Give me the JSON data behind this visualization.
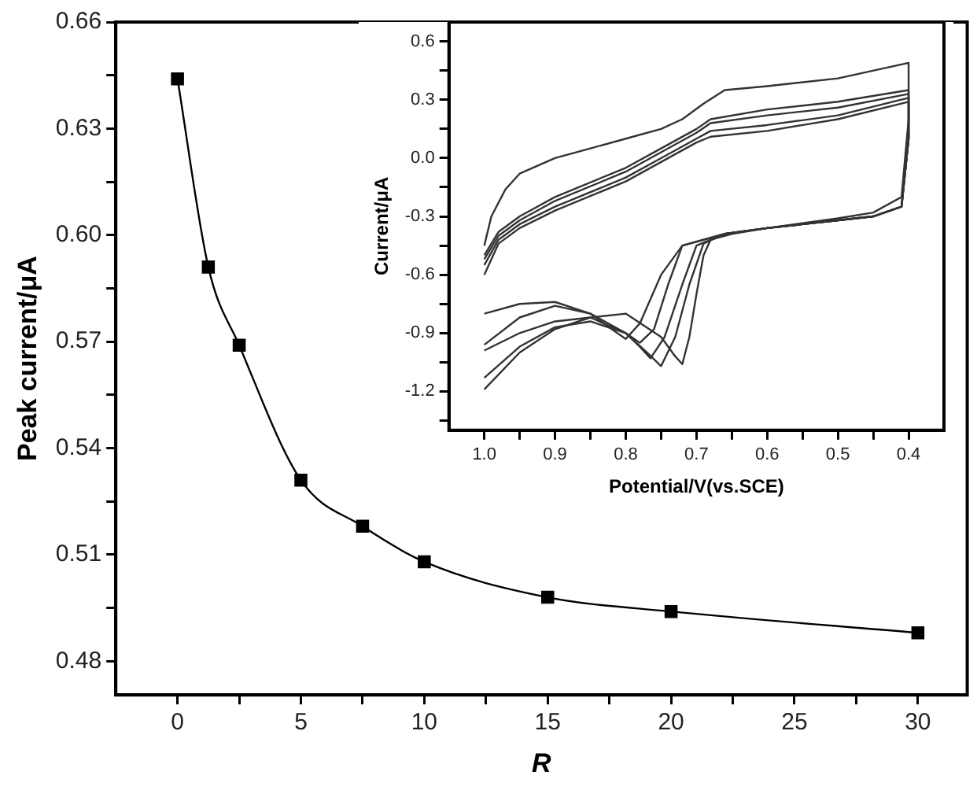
{
  "chart_data": [
    {
      "type": "line",
      "xlabel": "R",
      "ylabel": "Peak current/μA",
      "x": [
        0,
        1.25,
        2.5,
        5,
        7.5,
        10,
        15,
        20,
        30
      ],
      "series": [
        {
          "color": "#000000",
          "values": [
            0.644,
            0.591,
            0.569,
            0.531,
            0.518,
            0.508,
            0.498,
            0.494,
            0.488
          ]
        }
      ],
      "marker": "square",
      "xlim": [
        -2.5,
        32
      ],
      "ylim": [
        0.4705,
        0.66
      ],
      "xticks": [
        0,
        {
          "value": 2.5,
          "label": null
        },
        5,
        {
          "value": 7.5,
          "label": null
        },
        10,
        {
          "value": 12.5,
          "label": null
        },
        15,
        {
          "value": 17.5,
          "label": null
        },
        20,
        {
          "value": 22.5,
          "label": null
        },
        25,
        {
          "value": 27.5,
          "label": null
        },
        30
      ],
      "yticks": [
        0.48,
        {
          "value": 0.495,
          "label": null
        },
        0.51,
        {
          "value": 0.525,
          "label": null
        },
        0.54,
        {
          "value": 0.555,
          "label": null
        },
        0.57,
        {
          "value": 0.585,
          "label": null
        },
        {
          "value": 0.6,
          "label": "0.60"
        },
        {
          "value": 0.615,
          "label": null
        },
        0.63,
        {
          "value": 0.645,
          "label": null
        },
        0.66
      ],
      "grid": false,
      "legend": false
    },
    {
      "type": "line",
      "xlabel": "Potential/V(vs.SCE)",
      "ylabel": "Current/μA",
      "marker": "none",
      "grid": false,
      "legend": false,
      "xlim": [
        1.05,
        0.35
      ],
      "ylim": [
        -1.4,
        0.7
      ],
      "xticks": [
        {
          "value": 1.0,
          "label": "1.0"
        },
        {
          "value": 0.95,
          "label": null
        },
        {
          "value": 0.9,
          "label": "0.9"
        },
        {
          "value": 0.85,
          "label": null
        },
        {
          "value": 0.8,
          "label": "0.8"
        },
        {
          "value": 0.75,
          "label": null
        },
        {
          "value": 0.7,
          "label": "0.7"
        },
        {
          "value": 0.65,
          "label": null
        },
        {
          "value": 0.6,
          "label": "0.6"
        },
        {
          "value": 0.55,
          "label": null
        },
        {
          "value": 0.5,
          "label": "0.5"
        },
        {
          "value": 0.45,
          "label": null
        },
        {
          "value": 0.4,
          "label": "0.4"
        }
      ],
      "yticks": [
        {
          "value": -1.35,
          "label": null
        },
        {
          "value": -1.2,
          "label": "-1.2"
        },
        {
          "value": -1.05,
          "label": null
        },
        {
          "value": -0.9,
          "label": "-0.9"
        },
        {
          "value": -0.75,
          "label": null
        },
        {
          "value": -0.6,
          "label": "-0.6"
        },
        {
          "value": -0.45,
          "label": null
        },
        {
          "value": -0.3,
          "label": "-0.3"
        },
        {
          "value": -0.15,
          "label": null
        },
        {
          "value": 0,
          "label": "0.0"
        },
        {
          "value": 0.15,
          "label": null
        },
        {
          "value": 0.3,
          "label": "0.3"
        },
        {
          "value": 0.45,
          "label": null
        },
        {
          "value": 0.6,
          "label": "0.6"
        }
      ],
      "series": [
        {
          "color": "#333333",
          "x": [
            1.0,
            0.99,
            0.97,
            0.95,
            0.9,
            0.85,
            0.8,
            0.75,
            0.72,
            0.69,
            0.66,
            0.6,
            0.5,
            0.4,
            0.4,
            0.41,
            0.45,
            0.5,
            0.6,
            0.65,
            0.68,
            0.69,
            0.7,
            0.71,
            0.72,
            0.73,
            0.75,
            0.8,
            0.85,
            0.9,
            0.95,
            1.0
          ],
          "values": [
            -0.45,
            -0.3,
            -0.16,
            -0.08,
            0.0,
            0.05,
            0.1,
            0.15,
            0.2,
            0.28,
            0.35,
            0.37,
            0.41,
            0.49,
            0.2,
            -0.2,
            -0.28,
            -0.31,
            -0.36,
            -0.39,
            -0.42,
            -0.5,
            -0.7,
            -0.92,
            -1.06,
            -1.02,
            -0.92,
            -0.8,
            -0.82,
            -0.88,
            -1.0,
            -1.19
          ]
        },
        {
          "color": "#333333",
          "x": [
            1.0,
            0.98,
            0.95,
            0.9,
            0.8,
            0.75,
            0.7,
            0.68,
            0.6,
            0.5,
            0.4,
            0.4,
            0.41,
            0.45,
            0.5,
            0.6,
            0.66,
            0.69,
            0.71,
            0.73,
            0.75,
            0.77,
            0.8,
            0.85,
            0.9,
            0.95,
            1.0
          ],
          "values": [
            -0.5,
            -0.38,
            -0.3,
            -0.2,
            -0.05,
            0.05,
            0.15,
            0.2,
            0.25,
            0.29,
            0.35,
            0.1,
            -0.25,
            -0.3,
            -0.32,
            -0.36,
            -0.39,
            -0.44,
            -0.65,
            -0.92,
            -1.07,
            -1.0,
            -0.9,
            -0.84,
            -0.87,
            -0.97,
            -1.13
          ]
        },
        {
          "color": "#333333",
          "x": [
            1.0,
            0.98,
            0.95,
            0.9,
            0.8,
            0.75,
            0.7,
            0.68,
            0.6,
            0.5,
            0.4,
            0.4,
            0.41,
            0.45,
            0.5,
            0.6,
            0.66,
            0.7,
            0.72,
            0.745,
            0.765,
            0.78,
            0.8,
            0.85,
            0.9,
            0.95,
            1.0
          ],
          "values": [
            -0.52,
            -0.4,
            -0.32,
            -0.22,
            -0.07,
            0.03,
            0.13,
            0.18,
            0.22,
            0.26,
            0.33,
            0.1,
            -0.25,
            -0.3,
            -0.32,
            -0.36,
            -0.39,
            -0.45,
            -0.65,
            -0.92,
            -1.03,
            -0.97,
            -0.9,
            -0.82,
            -0.84,
            -0.9,
            -0.99
          ]
        },
        {
          "color": "#333333",
          "x": [
            1.0,
            0.98,
            0.95,
            0.9,
            0.8,
            0.75,
            0.7,
            0.68,
            0.6,
            0.5,
            0.4,
            0.4,
            0.41,
            0.45,
            0.5,
            0.6,
            0.66,
            0.72,
            0.74,
            0.76,
            0.78,
            0.8,
            0.85,
            0.9,
            0.95,
            1.0
          ],
          "values": [
            -0.55,
            -0.42,
            -0.34,
            -0.25,
            -0.1,
            0.0,
            0.1,
            0.14,
            0.17,
            0.22,
            0.31,
            0.1,
            -0.25,
            -0.3,
            -0.32,
            -0.36,
            -0.39,
            -0.45,
            -0.65,
            -0.88,
            -0.95,
            -0.9,
            -0.8,
            -0.76,
            -0.82,
            -0.96
          ]
        },
        {
          "color": "#333333",
          "x": [
            1.0,
            0.98,
            0.95,
            0.9,
            0.8,
            0.75,
            0.7,
            0.68,
            0.6,
            0.5,
            0.4,
            0.4,
            0.41,
            0.45,
            0.5,
            0.6,
            0.66,
            0.72,
            0.75,
            0.78,
            0.8,
            0.82,
            0.85,
            0.9,
            0.95,
            1.0
          ],
          "values": [
            -0.6,
            -0.44,
            -0.36,
            -0.27,
            -0.12,
            -0.02,
            0.08,
            0.11,
            0.14,
            0.2,
            0.29,
            0.1,
            -0.25,
            -0.3,
            -0.32,
            -0.36,
            -0.39,
            -0.45,
            -0.6,
            -0.85,
            -0.93,
            -0.88,
            -0.8,
            -0.74,
            -0.75,
            -0.8
          ]
        }
      ]
    }
  ]
}
